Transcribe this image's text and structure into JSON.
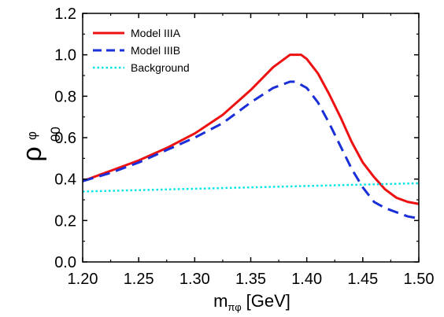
{
  "chart_data": {
    "type": "line",
    "xlabel": {
      "main": "m",
      "sub": "πφ",
      "unit": "[GeV]"
    },
    "ylabel": {
      "main": "ρ",
      "sub": "00",
      "sup": "φ"
    },
    "xlim": [
      1.2,
      1.5
    ],
    "ylim": [
      0.0,
      1.2
    ],
    "xticks": [
      "1.20",
      "1.25",
      "1.30",
      "1.35",
      "1.40",
      "1.45",
      "1.50"
    ],
    "yticks": [
      "0.0",
      "0.2",
      "0.4",
      "0.6",
      "0.8",
      "1.0",
      "1.2"
    ],
    "grid": false,
    "legend_position": "top-left",
    "series": [
      {
        "name": "Model IIIA",
        "color": "#ee1111",
        "style": "solid",
        "x": [
          1.2,
          1.225,
          1.25,
          1.275,
          1.3,
          1.325,
          1.35,
          1.37,
          1.385,
          1.39,
          1.395,
          1.4,
          1.41,
          1.42,
          1.43,
          1.44,
          1.45,
          1.46,
          1.47,
          1.48,
          1.49,
          1.5
        ],
        "y": [
          0.39,
          0.44,
          0.49,
          0.55,
          0.62,
          0.71,
          0.83,
          0.94,
          1.0,
          1.0,
          1.0,
          0.98,
          0.91,
          0.81,
          0.7,
          0.58,
          0.48,
          0.41,
          0.35,
          0.31,
          0.29,
          0.28
        ]
      },
      {
        "name": "Model IIIB",
        "color": "#1a2fd8",
        "style": "dashed",
        "x": [
          1.2,
          1.225,
          1.25,
          1.275,
          1.3,
          1.325,
          1.35,
          1.37,
          1.385,
          1.39,
          1.4,
          1.41,
          1.42,
          1.43,
          1.44,
          1.45,
          1.46,
          1.47,
          1.48,
          1.49,
          1.5
        ],
        "y": [
          0.39,
          0.43,
          0.48,
          0.54,
          0.6,
          0.67,
          0.77,
          0.84,
          0.87,
          0.87,
          0.84,
          0.77,
          0.67,
          0.56,
          0.45,
          0.36,
          0.29,
          0.26,
          0.24,
          0.22,
          0.21
        ]
      },
      {
        "name": "Background",
        "color": "#00e5e5",
        "style": "dotted",
        "x": [
          1.2,
          1.5
        ],
        "y": [
          0.34,
          0.38
        ]
      }
    ]
  }
}
